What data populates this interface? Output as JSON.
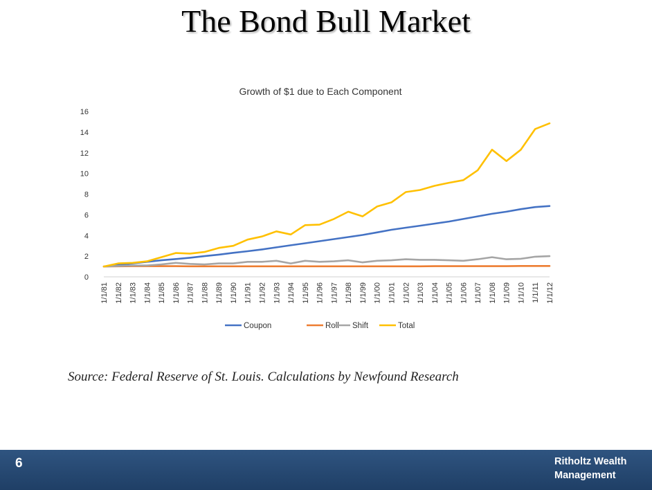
{
  "slide": {
    "title": "The Bond Bull Market",
    "source": "Source: Federal Reserve of St. Louis.  Calculations by Newfound Research",
    "page_number": "6",
    "brand_line1": "Ritholtz Wealth",
    "brand_line2": "Management"
  },
  "chart_data": {
    "type": "line",
    "title": "Growth of $1 due to Each Component",
    "xlabel": "",
    "ylabel": "",
    "ylim": [
      0,
      16
    ],
    "yticks": [
      0,
      2,
      4,
      6,
      8,
      10,
      12,
      14,
      16
    ],
    "grid": false,
    "legend_position": "bottom",
    "categories": [
      "1/1/81",
      "1/1/82",
      "1/1/83",
      "1/1/84",
      "1/1/85",
      "1/1/86",
      "1/1/87",
      "1/1/88",
      "1/1/89",
      "1/1/90",
      "1/1/91",
      "1/1/92",
      "1/1/93",
      "1/1/94",
      "1/1/95",
      "1/1/96",
      "1/1/97",
      "1/1/98",
      "1/1/99",
      "1/1/00",
      "1/1/01",
      "1/1/02",
      "1/1/03",
      "1/1/04",
      "1/1/05",
      "1/1/06",
      "1/1/07",
      "1/1/08",
      "1/1/09",
      "1/1/10",
      "1/1/11",
      "1/1/12"
    ],
    "series": [
      {
        "name": "Coupon",
        "color": "#4472C4",
        "values": [
          1.0,
          1.15,
          1.3,
          1.45,
          1.6,
          1.72,
          1.85,
          2.0,
          2.15,
          2.32,
          2.48,
          2.65,
          2.85,
          3.05,
          3.25,
          3.45,
          3.65,
          3.85,
          4.05,
          4.3,
          4.55,
          4.75,
          4.95,
          5.15,
          5.35,
          5.6,
          5.85,
          6.1,
          6.3,
          6.55,
          6.75,
          6.85
        ]
      },
      {
        "name": "Roll",
        "color": "#ED7D31",
        "values": [
          1.0,
          1.02,
          1.03,
          1.03,
          1.03,
          1.03,
          1.02,
          1.02,
          1.02,
          1.02,
          1.02,
          1.02,
          1.02,
          1.02,
          1.02,
          1.02,
          1.02,
          1.02,
          1.02,
          1.02,
          1.02,
          1.02,
          1.02,
          1.03,
          1.03,
          1.03,
          1.03,
          1.03,
          1.03,
          1.05,
          1.05,
          1.05
        ]
      },
      {
        "name": "Shift",
        "color": "#A5A5A5",
        "values": [
          1.0,
          1.05,
          1.1,
          1.1,
          1.2,
          1.35,
          1.25,
          1.2,
          1.3,
          1.3,
          1.45,
          1.45,
          1.55,
          1.3,
          1.55,
          1.45,
          1.5,
          1.6,
          1.4,
          1.55,
          1.6,
          1.7,
          1.65,
          1.65,
          1.6,
          1.55,
          1.7,
          1.9,
          1.7,
          1.75,
          1.95,
          2.0
        ]
      },
      {
        "name": "Total",
        "color": "#FFC000",
        "values": [
          1.0,
          1.3,
          1.35,
          1.5,
          1.9,
          2.3,
          2.25,
          2.4,
          2.8,
          3.0,
          3.6,
          3.9,
          4.4,
          4.1,
          5.0,
          5.05,
          5.6,
          6.3,
          5.85,
          6.8,
          7.2,
          8.2,
          8.4,
          8.8,
          9.1,
          9.35,
          10.3,
          12.3,
          11.2,
          12.3,
          14.3,
          14.85
        ]
      }
    ]
  }
}
